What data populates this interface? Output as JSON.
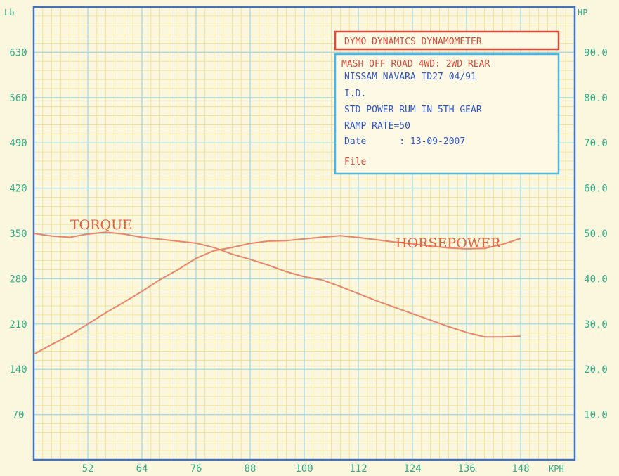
{
  "colors": {
    "background": "#fbf7df",
    "grid_minor": "#eede8e",
    "grid_major": "#9fd6e2",
    "frame": "#3f73c9",
    "axis_text": "#2fae8a",
    "curve": "#e8846a",
    "curve_label": "#e0603f",
    "info_blue": "#2d55c8",
    "info_red": "#d84a3a",
    "info_border": "#46b8e6"
  },
  "chart_data": {
    "type": "line",
    "x_unit": "KPH",
    "y_left_unit": "Lb",
    "y_right_unit": "HP",
    "x_ticks": [
      52,
      64,
      76,
      88,
      100,
      112,
      124,
      136,
      148
    ],
    "y_left_ticks": [
      70,
      140,
      210,
      280,
      350,
      420,
      490,
      560,
      630
    ],
    "y_right_ticks": [
      "10.0",
      "20.0",
      "30.0",
      "40.0",
      "50.0",
      "60.0",
      "70.0",
      "80.0",
      "90.0"
    ],
    "xlim": [
      40,
      160
    ],
    "ylim_left": [
      0,
      700
    ],
    "ylim_right": [
      0,
      100
    ],
    "grid": true,
    "series": [
      {
        "name": "TORQUE",
        "axis": "left",
        "x": [
          40,
          44,
          48,
          52,
          56,
          60,
          64,
          68,
          72,
          76,
          80,
          84,
          88,
          92,
          96,
          100,
          104,
          108,
          112,
          116,
          120,
          124,
          128,
          132,
          136,
          140,
          144,
          148
        ],
        "y": [
          350,
          346,
          344,
          349,
          352,
          349,
          344,
          341,
          338,
          335,
          328,
          318,
          310,
          301,
          291,
          283,
          278,
          268,
          257,
          246,
          236,
          226,
          216,
          206,
          197,
          190,
          190,
          191
        ]
      },
      {
        "name": "HORSEPOWER",
        "axis": "right",
        "x": [
          40,
          44,
          48,
          52,
          56,
          60,
          64,
          68,
          72,
          76,
          80,
          84,
          88,
          92,
          96,
          100,
          104,
          108,
          112,
          116,
          120,
          124,
          128,
          132,
          136,
          140,
          144,
          148
        ],
        "y": [
          23.3,
          25.5,
          27.5,
          30.0,
          32.5,
          34.8,
          37.2,
          39.8,
          42.0,
          44.5,
          46.2,
          46.9,
          47.8,
          48.3,
          48.4,
          48.8,
          49.2,
          49.5,
          49.1,
          48.6,
          48.1,
          47.7,
          47.2,
          46.8,
          46.6,
          46.7,
          47.6,
          48.9
        ]
      }
    ]
  },
  "curve_labels": {
    "torque": "TORQUE",
    "horsepower": "HORSEPOWER"
  },
  "info_box": {
    "title": "DYMO DYNAMICS DYNAMOMETER",
    "lines": [
      "MASH OFF ROAD 4WD: 2WD REAR",
      "NISSAM NAVARA TD27  04/91",
      "I.D.",
      "STD POWER RUM IN 5TH GEAR",
      "RAMP RATE=50",
      "Date      : 13-09-2007",
      "File"
    ]
  }
}
